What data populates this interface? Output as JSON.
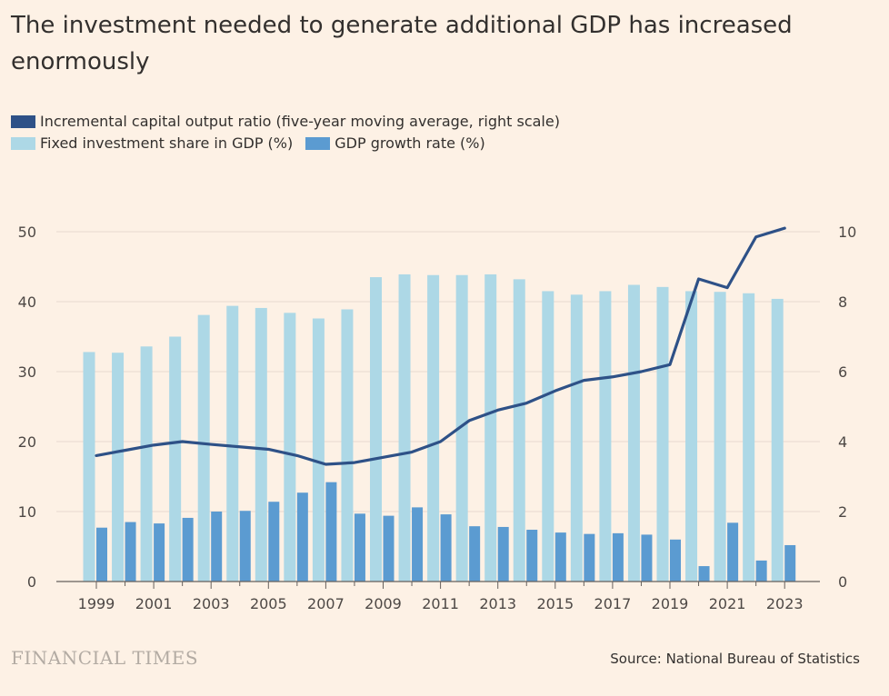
{
  "title": "The investment needed to generate additional GDP has increased enormously",
  "legend": {
    "icor": "Incremental capital output ratio (five-year moving average, right scale)",
    "investment": "Fixed investment share in GDP (%)",
    "growth": "GDP growth rate (%)"
  },
  "footer": {
    "logo": "FINANCIAL TIMES",
    "source": "Source: National Bureau of Statistics"
  },
  "colors": {
    "background": "#fdf1e5",
    "icor": "#2e5187",
    "investment": "#add8e6",
    "growth": "#5b9bd1",
    "grid": "#e6d9ce",
    "axis": "#66605c"
  },
  "chart_data": {
    "type": "bar",
    "categories": [
      "1999",
      "2000",
      "2001",
      "2002",
      "2003",
      "2004",
      "2005",
      "2006",
      "2007",
      "2008",
      "2009",
      "2010",
      "2011",
      "2012",
      "2013",
      "2014",
      "2015",
      "2016",
      "2017",
      "2018",
      "2019",
      "2020",
      "2021",
      "2022",
      "2023"
    ],
    "x_tick_labels": [
      "1999",
      "2001",
      "2003",
      "2005",
      "2007",
      "2009",
      "2011",
      "2013",
      "2015",
      "2017",
      "2019",
      "2021",
      "2023"
    ],
    "y_left": {
      "ticks": [
        "0",
        "10",
        "20",
        "30",
        "40",
        "50"
      ],
      "range": [
        0,
        50
      ]
    },
    "y_right": {
      "ticks": [
        "0",
        "2",
        "4",
        "6",
        "8",
        "10"
      ],
      "range": [
        0,
        10
      ]
    },
    "series": [
      {
        "name": "Fixed investment share in GDP (%)",
        "type": "bar",
        "axis": "left",
        "values": [
          32.8,
          32.7,
          33.6,
          35.0,
          38.1,
          39.4,
          39.1,
          38.4,
          37.6,
          38.9,
          43.5,
          43.9,
          43.8,
          43.8,
          43.9,
          43.2,
          41.5,
          41.0,
          41.5,
          42.4,
          42.1,
          41.5,
          41.4,
          41.2,
          40.4
        ]
      },
      {
        "name": "GDP growth rate (%)",
        "type": "bar",
        "axis": "left",
        "values": [
          7.7,
          8.5,
          8.3,
          9.1,
          10.0,
          10.1,
          11.4,
          12.7,
          14.2,
          9.7,
          9.4,
          10.6,
          9.6,
          7.9,
          7.8,
          7.4,
          7.0,
          6.8,
          6.9,
          6.7,
          6.0,
          2.2,
          8.4,
          3.0,
          5.2
        ]
      },
      {
        "name": "Incremental capital output ratio (five-year moving average, right scale)",
        "type": "line",
        "axis": "right",
        "values": [
          3.6,
          3.75,
          3.9,
          4.0,
          3.92,
          3.85,
          3.78,
          3.6,
          3.35,
          3.4,
          3.55,
          3.7,
          4.0,
          4.6,
          4.9,
          5.1,
          5.45,
          5.75,
          5.85,
          6.0,
          6.2,
          8.65,
          8.4,
          9.85,
          10.1
        ]
      }
    ],
    "grid": true,
    "legend_position": "top-left"
  }
}
